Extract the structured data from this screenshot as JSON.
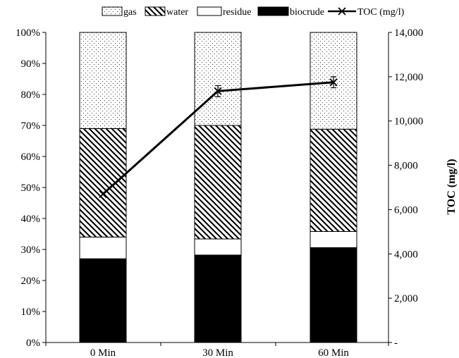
{
  "chart_data": {
    "type": "bar",
    "stacked": true,
    "percent_stacked": true,
    "categories": [
      "0 Min",
      "30 Min",
      "60 Min"
    ],
    "series": [
      {
        "name": "biocrude",
        "values": [
          27,
          28.2,
          30.6
        ],
        "pattern": "solid",
        "color": "#000000"
      },
      {
        "name": "residue",
        "values": [
          7,
          5.2,
          5.2
        ],
        "pattern": "none",
        "color": "#ffffff"
      },
      {
        "name": "water",
        "values": [
          35,
          36.6,
          33
        ],
        "pattern": "diagonal-hatch",
        "color": "#000000"
      },
      {
        "name": "gas",
        "values": [
          31,
          30,
          31.2
        ],
        "pattern": "dots",
        "color": "#000000"
      }
    ],
    "line_series": {
      "name": "TOC (mg/l)",
      "axis": "right",
      "values": [
        6700,
        11350,
        11750
      ],
      "error": [
        0,
        250,
        250
      ],
      "marker": "x",
      "color": "#000000"
    },
    "y_left": {
      "ylim": [
        0,
        100
      ],
      "ticks": [
        0,
        10,
        20,
        30,
        40,
        50,
        60,
        70,
        80,
        90,
        100
      ],
      "tick_labels": [
        "0%",
        "10%",
        "20%",
        "30%",
        "40%",
        "50%",
        "60%",
        "70%",
        "80%",
        "90%",
        "100%"
      ]
    },
    "y_right": {
      "label": "TOC (mg/l)",
      "ylim": [
        0,
        14000
      ],
      "ticks": [
        0,
        2000,
        4000,
        6000,
        8000,
        10000,
        12000,
        14000
      ],
      "tick_labels": [
        "-",
        "2,000",
        "4,000",
        "6,000",
        "8,000",
        "10,000",
        "12,000",
        "14,000"
      ]
    },
    "legend": {
      "placement": "top",
      "entries": [
        "gas",
        "water",
        "residue",
        "biocrude",
        "TOC (mg/l)"
      ]
    },
    "grid": false
  }
}
